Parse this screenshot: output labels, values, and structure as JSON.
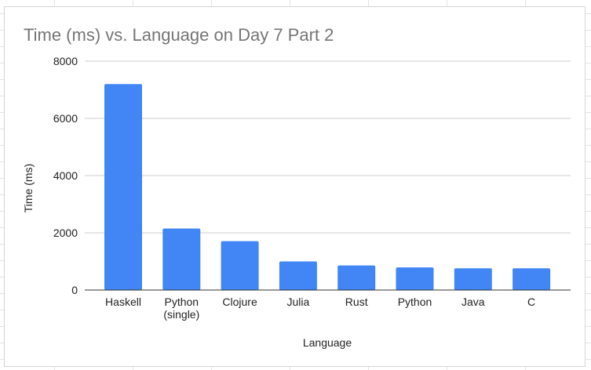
{
  "chart_data": {
    "type": "bar",
    "title": "Time (ms) vs. Language on Day 7 Part 2",
    "xlabel": "Language",
    "ylabel": "Time (ms)",
    "categories": [
      "Haskell",
      "Python\n(single)",
      "Clojure",
      "Julia",
      "Rust",
      "Python",
      "Java",
      "C"
    ],
    "values": [
      7200,
      2150,
      1710,
      1000,
      860,
      790,
      760,
      760
    ],
    "ylim": [
      0,
      8000
    ],
    "yticks": [
      0,
      2000,
      4000,
      6000,
      8000
    ],
    "grid": true,
    "legend": "none",
    "colors": {
      "bar": "#4285f4",
      "grid": "#cccccc",
      "baseline": "#333333",
      "title": "#757575"
    }
  }
}
